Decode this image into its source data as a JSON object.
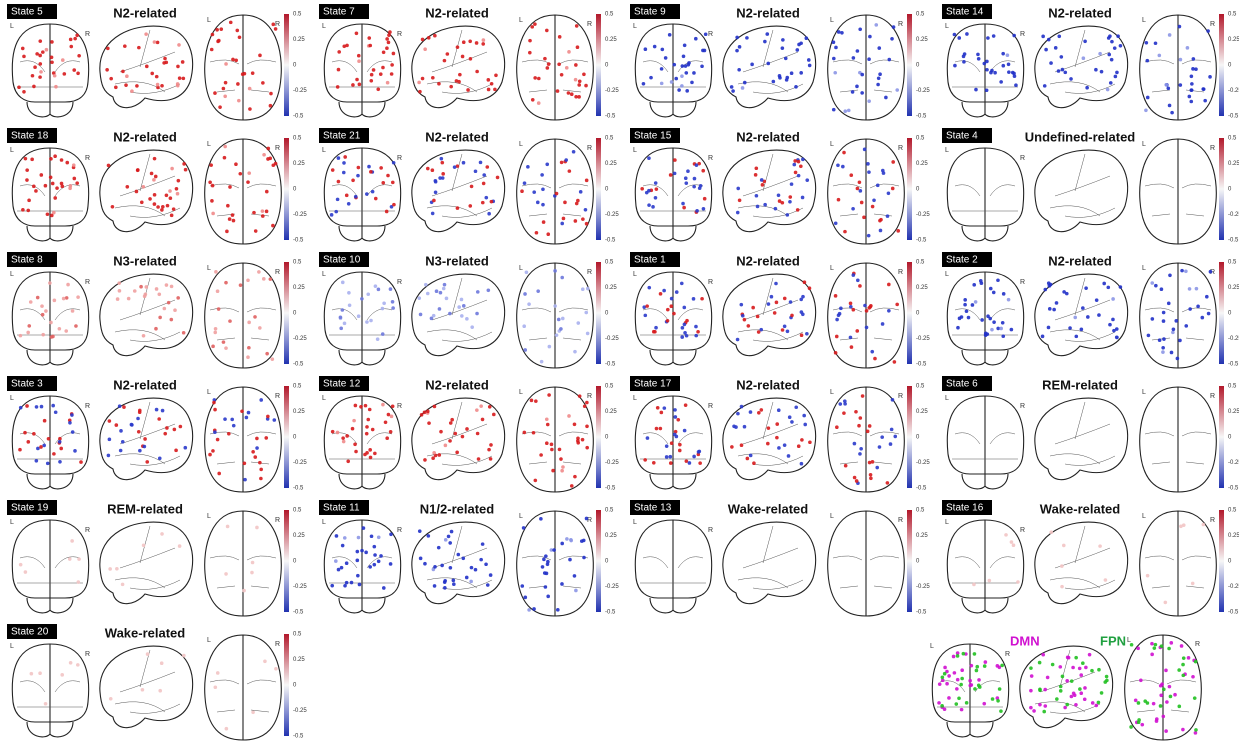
{
  "panels": [
    {
      "state": "State 5",
      "title": "N2-related"
    },
    {
      "state": "State 7",
      "title": "N2-related"
    },
    {
      "state": "State 9",
      "title": "N2-related"
    },
    {
      "state": "State 14",
      "title": "N2-related"
    },
    {
      "state": "State 18",
      "title": "N2-related"
    },
    {
      "state": "State 21",
      "title": "N2-related"
    },
    {
      "state": "State 15",
      "title": "N2-related"
    },
    {
      "state": "State 4",
      "title": "Undefined-related"
    },
    {
      "state": "State 8",
      "title": "N3-related"
    },
    {
      "state": "State 10",
      "title": "N3-related"
    },
    {
      "state": "State 1",
      "title": "N2-related"
    },
    {
      "state": "State 2",
      "title": "N2-related"
    },
    {
      "state": "State 3",
      "title": "N2-related"
    },
    {
      "state": "State 12",
      "title": "N2-related"
    },
    {
      "state": "State 17",
      "title": "N2-related"
    },
    {
      "state": "State 6",
      "title": "REM-related"
    },
    {
      "state": "State 19",
      "title": "REM-related"
    },
    {
      "state": "State 11",
      "title": "N1/2-related"
    },
    {
      "state": "State 13",
      "title": "Wake-related"
    },
    {
      "state": "State 16",
      "title": "Wake-related"
    },
    {
      "state": "State 20",
      "title": "Wake-related"
    }
  ],
  "colorbar": {
    "ticks": [
      "0.5",
      "0.25",
      "0",
      "-0.25",
      "-0.5"
    ]
  },
  "orientation": {
    "left": "L",
    "right": "R"
  },
  "network_legend": {
    "dmn": "DMN",
    "fpn": "FPN"
  }
}
